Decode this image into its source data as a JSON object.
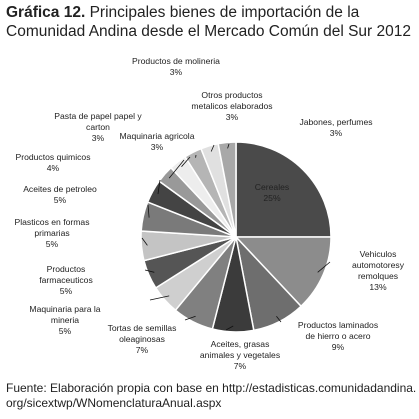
{
  "figure": {
    "number_label": "Gráfica 12.",
    "title_text": "Principales bienes de importación de la Comunidad Andina desde el Mercado Común del Sur 2012",
    "source_line1": "Fuente: Elaboración propia con base en http://estadisticas.comunidadandina.",
    "source_line2": "org/sicextwp/WNomenclaturaAnual.aspx"
  },
  "chart_data": {
    "type": "pie",
    "unit": "%",
    "slices": [
      {
        "label": [
          "Cereales"
        ],
        "value": 25,
        "value_label": "25%",
        "color": "#4a4a4a"
      },
      {
        "label": [
          "Vehiculos",
          "automotoresy",
          "remolques"
        ],
        "value": 13,
        "value_label": "13%",
        "color": "#8c8c8c"
      },
      {
        "label": [
          "Productos laminados",
          "de hierro o acero"
        ],
        "value": 9,
        "value_label": "9%",
        "color": "#6e6e6e"
      },
      {
        "label": [
          "Aceites, grasas",
          "animales y vegetales"
        ],
        "value": 7,
        "value_label": "7%",
        "color": "#3b3b3b"
      },
      {
        "label": [
          "Tortas de semillas",
          "oleaginosas"
        ],
        "value": 7,
        "value_label": "7%",
        "color": "#808080"
      },
      {
        "label": [
          "Maquinaria para la",
          "mineria"
        ],
        "value": 5,
        "value_label": "5%",
        "color": "#cfcfcf"
      },
      {
        "label": [
          "Productos",
          "farmaceuticos"
        ],
        "value": 5,
        "value_label": "5%",
        "color": "#555555"
      },
      {
        "label": [
          "Plasticos en formas",
          "primarias"
        ],
        "value": 5,
        "value_label": "5%",
        "color": "#c4c4c4"
      },
      {
        "label": [
          "Aceites de petroleo"
        ],
        "value": 5,
        "value_label": "5%",
        "color": "#7a7a7a"
      },
      {
        "label": [
          "Productos quimicos"
        ],
        "value": 4,
        "value_label": "4%",
        "color": "#444444"
      },
      {
        "label": [
          "Pasta de papel papel y",
          "carton"
        ],
        "value": 3,
        "value_label": "3%",
        "color": "#999999"
      },
      {
        "label": [
          "Productos de molineria"
        ],
        "value": 3,
        "value_label": "3%",
        "color": "#ededed"
      },
      {
        "label": [
          "Maquinaria agricola"
        ],
        "value": 3,
        "value_label": "3%",
        "color": "#b5b5b5"
      },
      {
        "label": [
          "Otros productos",
          "metalicos elaborados"
        ],
        "value": 3,
        "value_label": "3%",
        "color": "#e0e0e0"
      },
      {
        "label": [
          "Jabones,  perfumes"
        ],
        "value": 3,
        "value_label": "3%",
        "color": "#a8a8a8"
      }
    ]
  }
}
